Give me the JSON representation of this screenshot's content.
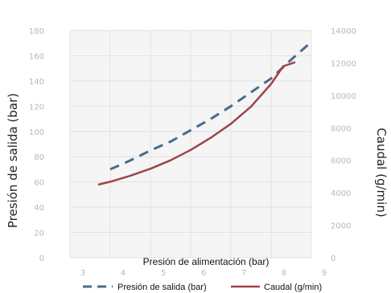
{
  "chart_data": {
    "type": "line",
    "xlabel": "Presión de alimentación (bar)",
    "ylabel_left": "Presión de salida (bar)",
    "ylabel_right": "Caudal (g/min)",
    "xlim": [
      3,
      9
    ],
    "ylim_left": [
      0,
      180
    ],
    "ylim_right": [
      0,
      14000
    ],
    "x_ticks": [
      "3",
      "4",
      "5",
      "6",
      "7",
      "8",
      "9"
    ],
    "y_left_ticks": [
      "0",
      "20",
      "40",
      "60",
      "80",
      "100",
      "120",
      "140",
      "160",
      "180"
    ],
    "y_right_ticks": [
      "0",
      "2000",
      "4000",
      "6000",
      "8000",
      "10000",
      "12000",
      "14000"
    ],
    "grid": true,
    "legend_position": "bottom",
    "series": [
      {
        "name": "Presión de salida (bar)",
        "axis": "left",
        "style": "dashed",
        "color": "#4a6b8a",
        "x": [
          4.0,
          4.5,
          5.0,
          5.5,
          6.0,
          6.5,
          7.0,
          7.5,
          8.0,
          8.5,
          9.0
        ],
        "y": [
          70,
          77,
          85,
          92,
          101,
          110,
          120,
          131,
          142,
          157,
          171
        ]
      },
      {
        "name": "Caudal (g/min)",
        "axis": "right",
        "style": "solid",
        "color": "#a0434a",
        "x": [
          3.7,
          4.0,
          4.5,
          5.0,
          5.5,
          6.0,
          6.5,
          7.0,
          7.5,
          8.0,
          8.3,
          8.6
        ],
        "y": [
          4500,
          4680,
          5050,
          5480,
          6000,
          6640,
          7390,
          8250,
          9310,
          10710,
          11800,
          12050
        ]
      }
    ]
  }
}
